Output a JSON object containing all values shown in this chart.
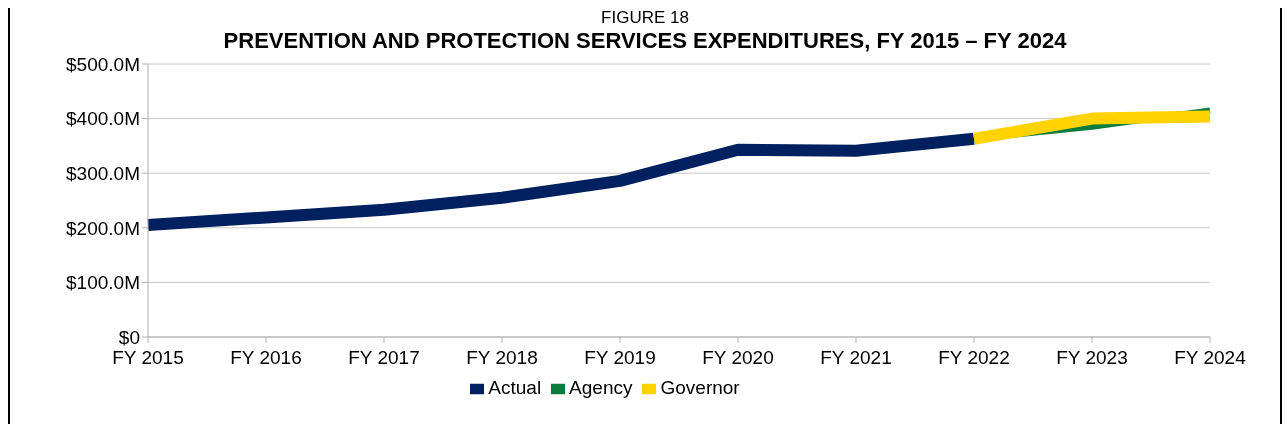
{
  "chart_data": {
    "type": "line",
    "title": "PREVENTION AND PROTECTION SERVICES EXPENDITURES, FY 2015 – FY 2024",
    "subtitle": "FIGURE 18",
    "categories": [
      "FY 2015",
      "FY 2016",
      "FY 2017",
      "FY 2018",
      "FY 2019",
      "FY 2020",
      "FY 2021",
      "FY 2022",
      "FY 2023",
      "FY 2024"
    ],
    "series": [
      {
        "name": "Actual",
        "color": "#002060",
        "values": [
          205,
          219,
          233,
          255,
          286,
          343,
          341,
          363,
          null,
          null
        ]
      },
      {
        "name": "Agency",
        "color": "#0b7c3e",
        "values": [
          null,
          null,
          null,
          null,
          null,
          null,
          null,
          363,
          385,
          415
        ]
      },
      {
        "name": "Governor",
        "color": "#ffd200",
        "values": [
          null,
          null,
          null,
          null,
          null,
          null,
          null,
          363,
          400,
          404
        ]
      }
    ],
    "ylim": [
      0,
      500
    ],
    "yticks": [
      {
        "value": 0,
        "label": "$0"
      },
      {
        "value": 100,
        "label": "$100.0M"
      },
      {
        "value": 200,
        "label": "$200.0M"
      },
      {
        "value": 300,
        "label": "$300.0M"
      },
      {
        "value": 400,
        "label": "$400.0M"
      },
      {
        "value": 500,
        "label": "$500.0M"
      }
    ],
    "grid": "y",
    "legend": "bottom",
    "marker": "none",
    "line_style": "solid"
  }
}
